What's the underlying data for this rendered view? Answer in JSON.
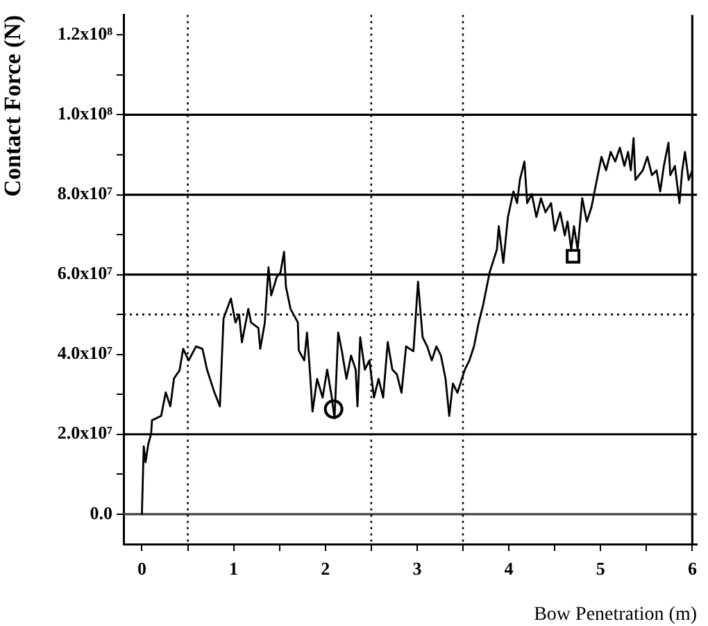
{
  "chart_data": {
    "type": "line",
    "xlabel": "Bow Penetration (m)",
    "ylabel": "Contact Force (N)",
    "xlim": [
      -0.2,
      6.05
    ],
    "ylim": [
      -7500000,
      125000000
    ],
    "xticks": [
      0,
      {
        "value": 0.5,
        "label": null
      },
      1,
      {
        "value": 1.5,
        "label": null
      },
      2,
      {
        "value": 2.5,
        "label": null
      },
      3,
      {
        "value": 3.5,
        "label": null
      },
      4,
      {
        "value": 4.5,
        "label": null
      },
      5,
      {
        "value": 5.5,
        "label": null
      },
      6
    ],
    "yticks": [
      {
        "value": 0,
        "label": "0.0"
      },
      {
        "value": 10000000,
        "label": null
      },
      {
        "value": 20000000,
        "label": "2.0x10⁷"
      },
      {
        "value": 30000000,
        "label": null
      },
      {
        "value": 40000000,
        "label": "4.0x10⁷"
      },
      {
        "value": 50000000,
        "label": null
      },
      {
        "value": 60000000,
        "label": "6.0x10⁷"
      },
      {
        "value": 70000000,
        "label": null
      },
      {
        "value": 80000000,
        "label": "8.0x10⁷"
      },
      {
        "value": 90000000,
        "label": null
      },
      {
        "value": 100000000,
        "label": "1.0x10⁸"
      },
      {
        "value": 110000000,
        "label": null
      },
      {
        "value": 120000000,
        "label": "1.2x10⁸"
      }
    ],
    "series": [
      {
        "color": "#000000",
        "x": [
          0,
          0.02,
          0.04,
          0.07,
          0.1,
          0.11,
          0.21,
          0.26,
          0.31,
          0.35,
          0.41,
          0.45,
          0.51,
          0.59,
          0.66,
          0.71,
          0.79,
          0.85,
          0.89,
          0.97,
          1.02,
          1.06,
          1.09,
          1.16,
          1.19,
          1.27,
          1.29,
          1.34,
          1.38,
          1.41,
          1.47,
          1.51,
          1.55,
          1.57,
          1.62,
          1.7,
          1.71,
          1.77,
          1.8,
          1.83,
          1.86,
          1.91,
          1.97,
          2.02,
          2.07,
          2.1,
          2.14,
          2.18,
          2.23,
          2.28,
          2.33,
          2.35,
          2.38,
          2.43,
          2.48,
          2.53,
          2.58,
          2.63,
          2.68,
          2.73,
          2.78,
          2.83,
          2.88,
          2.96,
          3.01,
          3.06,
          3.11,
          3.16,
          3.21,
          3.26,
          3.31,
          3.35,
          3.39,
          3.44,
          3.52,
          3.57,
          3.62,
          3.67,
          3.72,
          3.79,
          3.87,
          3.89,
          3.94,
          3.99,
          4.05,
          4.09,
          4.12,
          4.17,
          4.2,
          4.25,
          4.3,
          4.35,
          4.4,
          4.46,
          4.5,
          4.56,
          4.61,
          4.64,
          4.68,
          4.71,
          4.75,
          4.8,
          4.85,
          4.9,
          4.95,
          5.01,
          5.06,
          5.11,
          5.16,
          5.21,
          5.26,
          5.3,
          5.33,
          5.36,
          5.38,
          5.46,
          5.51,
          5.56,
          5.61,
          5.65,
          5.69,
          5.74,
          5.76,
          5.81,
          5.86,
          5.89,
          5.92,
          5.96,
          6.0
        ],
        "values": [
          0,
          17000000,
          13000000,
          17600000,
          20000000,
          23500000,
          24600000,
          30500000,
          27000000,
          34000000,
          36000000,
          41400000,
          38500000,
          42000000,
          41400000,
          36200000,
          30500000,
          27000000,
          49000000,
          54000000,
          48000000,
          50000000,
          43000000,
          51400000,
          48000000,
          46600000,
          41400000,
          48000000,
          61800000,
          54800000,
          59400000,
          60500000,
          65700000,
          57000000,
          51400000,
          48000000,
          41000000,
          38500000,
          45500000,
          36200000,
          25700000,
          33900000,
          29200000,
          36200000,
          29200000,
          24000000,
          45500000,
          40800000,
          33900000,
          39700000,
          36200000,
          27000000,
          44300000,
          36200000,
          38500000,
          29200000,
          33900000,
          29200000,
          43100000,
          36200000,
          35000000,
          30400000,
          42000000,
          40800000,
          58200000,
          44300000,
          42000000,
          38500000,
          42000000,
          39700000,
          33900000,
          24600000,
          32700000,
          30400000,
          36200000,
          38500000,
          42000000,
          47800000,
          52400000,
          60500000,
          66300000,
          72100000,
          62900000,
          74400000,
          80800000,
          77900000,
          83700000,
          88300000,
          77900000,
          80200000,
          74400000,
          79100000,
          75600000,
          77900000,
          71000000,
          75600000,
          69800000,
          73300000,
          66300000,
          72100000,
          66300000,
          79100000,
          73300000,
          76800000,
          82600000,
          89500000,
          86100000,
          90700000,
          88300000,
          91800000,
          87200000,
          90700000,
          86100000,
          94200000,
          83700000,
          86100000,
          89500000,
          84900000,
          86100000,
          80800000,
          87200000,
          93000000,
          84900000,
          87200000,
          77900000,
          86100000,
          90700000,
          83700000,
          86100000
        ]
      },
      {
        "type": "scatter",
        "marker": "circle",
        "color": "#000000",
        "x": [
          2.09
        ],
        "values": [
          26300000
        ]
      },
      {
        "type": "scatter",
        "marker": "square",
        "color": "#000000",
        "x": [
          4.7
        ],
        "values": [
          64600000
        ]
      }
    ],
    "ref_lines": [
      {
        "axis": "y",
        "value": 0,
        "color": "#444444"
      },
      {
        "axis": "y",
        "value": 20000000,
        "color": "#000000"
      },
      {
        "axis": "y",
        "value": 60000000,
        "color": "#000000"
      },
      {
        "axis": "y",
        "value": 80000000,
        "color": "#000000"
      },
      {
        "axis": "y",
        "value": 100000000,
        "color": "#000000"
      },
      {
        "axis": "y",
        "value": 50000000,
        "color": "#000000",
        "line_style": "dotted"
      },
      {
        "axis": "x",
        "value": 0.5,
        "color": "#000000",
        "line_style": "dotted"
      },
      {
        "axis": "x",
        "value": 2.5,
        "color": "#000000",
        "line_style": "dotted"
      },
      {
        "axis": "x",
        "value": 3.5,
        "color": "#000000",
        "line_style": "dotted"
      },
      {
        "axis": "x",
        "value": 6,
        "color": "#000000"
      }
    ]
  }
}
